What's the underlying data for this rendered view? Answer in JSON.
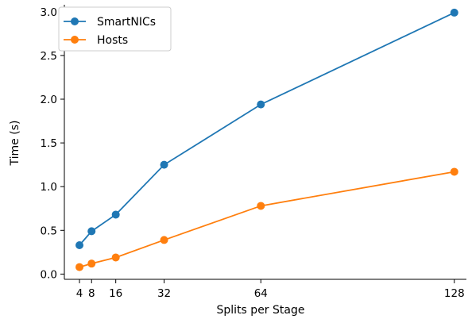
{
  "chart_data": {
    "type": "line",
    "xlabel": "Splits per Stage",
    "ylabel": "Time (s)",
    "x": [
      4,
      8,
      16,
      32,
      64,
      128
    ],
    "xticks": [
      "4",
      "8",
      "16",
      "32",
      "64",
      "128"
    ],
    "yticks": [
      "0.0",
      "0.5",
      "1.0",
      "1.5",
      "2.0",
      "2.5",
      "3.0"
    ],
    "xlim": [
      -1,
      132
    ],
    "ylim": [
      -0.06,
      3.08
    ],
    "legend_placement": "top-left",
    "grid": false,
    "series": [
      {
        "name": "SmartNICs",
        "color": "#1f77b4",
        "values": [
          0.33,
          0.49,
          0.68,
          1.25,
          1.94,
          2.99
        ]
      },
      {
        "name": "Hosts",
        "color": "#ff7f0e",
        "values": [
          0.08,
          0.12,
          0.19,
          0.39,
          0.78,
          1.17
        ]
      }
    ]
  }
}
